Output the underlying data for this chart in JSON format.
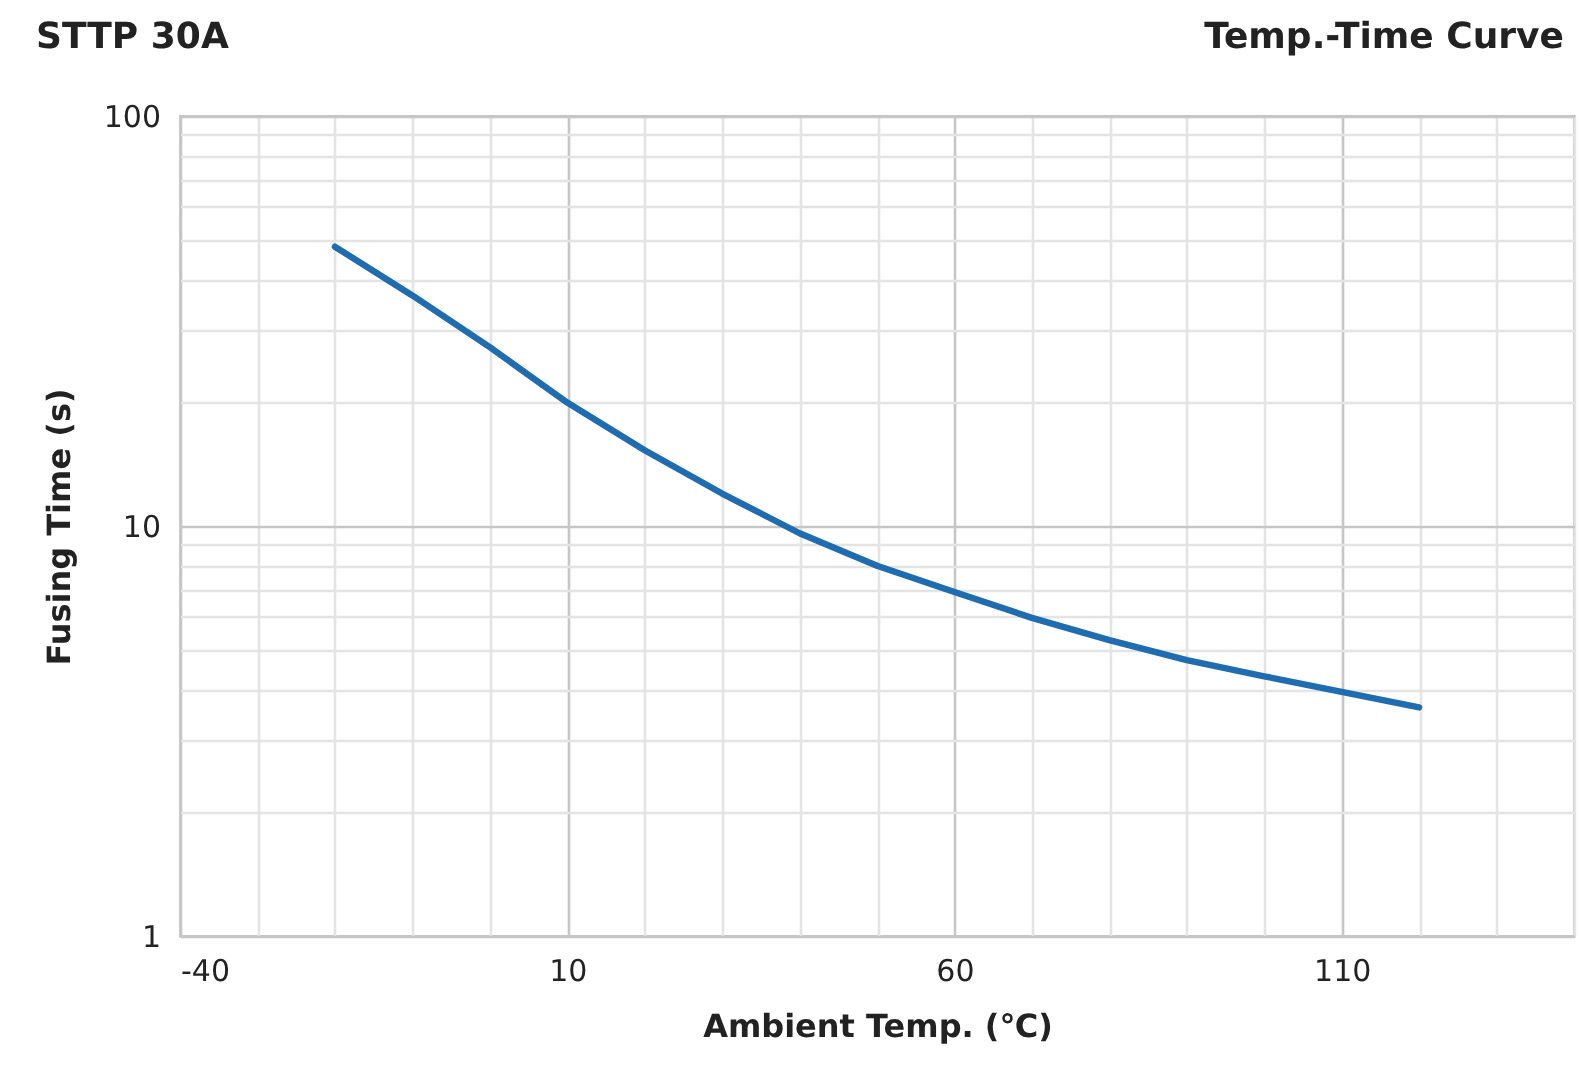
{
  "chart_data": {
    "type": "line",
    "title": "STTP 30A",
    "subtitle": "Temp.-Time Curve",
    "xlabel": "Ambient Temp. (℃)",
    "ylabel": "Fusing Time  (s)",
    "x": [
      -20,
      -10,
      0,
      10,
      20,
      30,
      40,
      50,
      60,
      70,
      80,
      90,
      100,
      110,
      120
    ],
    "series": [
      {
        "color": "#1f6cb0",
        "values": [
          48,
          36.5,
          27.3,
          20.0,
          15.3,
          12.0,
          9.6,
          8.0,
          6.9,
          5.97,
          5.27,
          4.71,
          4.3,
          3.94,
          3.61
        ]
      }
    ],
    "xlim": [
      -40,
      140
    ],
    "xticks": [
      -40,
      {
        "value": -30,
        "label": null
      },
      {
        "value": -20,
        "label": null
      },
      {
        "value": -10,
        "label": null
      },
      {
        "value": 0,
        "label": null
      },
      10,
      {
        "value": 20,
        "label": null
      },
      {
        "value": 30,
        "label": null
      },
      {
        "value": 40,
        "label": null
      },
      {
        "value": 50,
        "label": null
      },
      60,
      {
        "value": 70,
        "label": null
      },
      {
        "value": 80,
        "label": null
      },
      {
        "value": 90,
        "label": null
      },
      {
        "value": 100,
        "label": null
      },
      110,
      {
        "value": 120,
        "label": null
      },
      {
        "value": 130,
        "label": null
      },
      {
        "value": 140,
        "label": null
      }
    ],
    "ylim": [
      1,
      100
    ],
    "log": "y",
    "yticks": [
      1,
      {
        "value": 2,
        "label": null
      },
      {
        "value": 3,
        "label": null
      },
      {
        "value": 4,
        "label": null
      },
      {
        "value": 5,
        "label": null
      },
      {
        "value": 6,
        "label": null
      },
      {
        "value": 7,
        "label": null
      },
      {
        "value": 8,
        "label": null
      },
      {
        "value": 9,
        "label": null
      },
      10,
      {
        "value": 20,
        "label": null
      },
      {
        "value": 30,
        "label": null
      },
      {
        "value": 40,
        "label": null
      },
      {
        "value": 50,
        "label": null
      },
      {
        "value": 60,
        "label": null
      },
      {
        "value": 70,
        "label": null
      },
      {
        "value": 80,
        "label": null
      },
      {
        "value": 90,
        "label": null
      },
      100
    ],
    "grid": true,
    "line_style": "solid",
    "marker": "none"
  }
}
